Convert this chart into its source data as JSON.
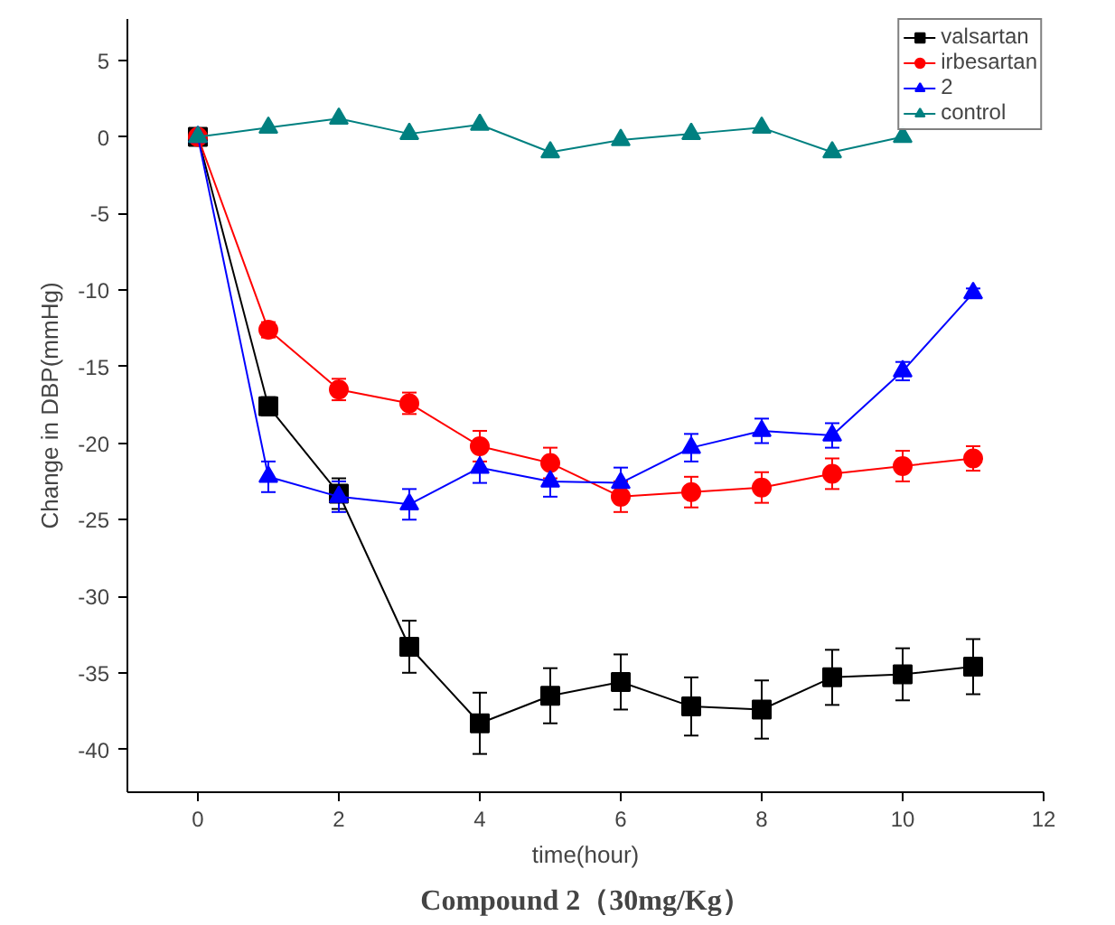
{
  "chart_data": {
    "type": "line",
    "title": "Compound 2（30mg/Kg）",
    "xlabel": "time(hour)",
    "ylabel": "Change in DBP(mmHg)",
    "x": [
      0,
      1,
      2,
      3,
      4,
      5,
      6,
      7,
      8,
      9,
      10,
      11
    ],
    "series": [
      {
        "name": "valsartan",
        "color": "#000000",
        "marker": "square",
        "values": [
          0,
          -17.6,
          -23.3,
          -33.3,
          -38.3,
          -36.5,
          -35.6,
          -37.2,
          -37.4,
          -35.3,
          -35.1,
          -34.6
        ],
        "errors": [
          null,
          0.6,
          1.0,
          1.7,
          2.0,
          1.8,
          1.8,
          1.9,
          1.9,
          1.8,
          1.7,
          1.8
        ]
      },
      {
        "name": "irbesartan",
        "color": "#ff0000",
        "marker": "circle",
        "values": [
          0,
          -12.6,
          -16.5,
          -17.4,
          -20.2,
          -21.3,
          -23.5,
          -23.2,
          -22.9,
          -22.0,
          -21.5,
          -21.0
        ],
        "errors": [
          null,
          0.5,
          0.7,
          0.7,
          1.0,
          1.0,
          1.0,
          1.0,
          1.0,
          1.0,
          1.0,
          0.8
        ]
      },
      {
        "name": "2",
        "color": "#0000ff",
        "marker": "triangle",
        "values": [
          0,
          -22.2,
          -23.5,
          -24.0,
          -21.6,
          -22.5,
          -22.6,
          -20.3,
          -19.2,
          -19.5,
          -15.3,
          -10.2
        ],
        "errors": [
          null,
          1.0,
          1.0,
          1.0,
          1.0,
          1.0,
          1.0,
          0.9,
          0.8,
          0.8,
          0.6,
          0.3
        ]
      },
      {
        "name": "control",
        "color": "#008080",
        "marker": "triangle",
        "values": [
          0,
          0.6,
          1.2,
          0.2,
          0.8,
          -1.0,
          -0.2,
          0.2,
          0.6,
          -1.0,
          0,
          null
        ]
      }
    ],
    "xlim": [
      -1,
      12
    ],
    "ylim": [
      -42.8,
      7.7
    ],
    "xticks": [
      0,
      2,
      4,
      6,
      8,
      10,
      12
    ],
    "yticks": [
      -40,
      -35,
      -30,
      -25,
      -20,
      -15,
      -10,
      -5,
      0,
      5
    ],
    "grid": false,
    "legend": "top right"
  }
}
